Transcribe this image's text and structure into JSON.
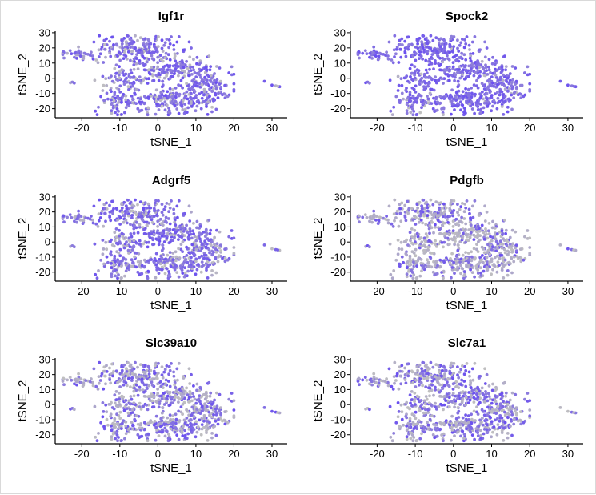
{
  "colors": {
    "low": "#c0c0c0",
    "high": "#6a4ff0",
    "axis": "#000000"
  },
  "chart_data": [
    {
      "type": "scatter",
      "title": "Igf1r",
      "xlabel": "tSNE_1",
      "ylabel": "tSNE_2",
      "xlim": [
        -27,
        34
      ],
      "ylim": [
        -26,
        31
      ],
      "xticks": [
        -20,
        -10,
        0,
        10,
        20,
        30
      ],
      "yticks": [
        -20,
        -10,
        0,
        10,
        20,
        30
      ],
      "grid": false,
      "legend": "none",
      "color_scale": "grey-to-purple",
      "high_fraction": 0.78,
      "seed": 11
    },
    {
      "type": "scatter",
      "title": "Spock2",
      "xlabel": "tSNE_1",
      "ylabel": "tSNE_2",
      "xlim": [
        -27,
        34
      ],
      "ylim": [
        -26,
        31
      ],
      "xticks": [
        -20,
        -10,
        0,
        10,
        20,
        30
      ],
      "yticks": [
        -20,
        -10,
        0,
        10,
        20,
        30
      ],
      "grid": false,
      "legend": "none",
      "color_scale": "grey-to-purple",
      "high_fraction": 0.92,
      "seed": 23
    },
    {
      "type": "scatter",
      "title": "Adgrf5",
      "xlabel": "tSNE_1",
      "ylabel": "tSNE_2",
      "xlim": [
        -27,
        34
      ],
      "ylim": [
        -26,
        31
      ],
      "xticks": [
        -20,
        -10,
        0,
        10,
        20,
        30
      ],
      "yticks": [
        -20,
        -10,
        0,
        10,
        20,
        30
      ],
      "grid": false,
      "legend": "none",
      "color_scale": "grey-to-purple",
      "high_fraction": 0.72,
      "seed": 37
    },
    {
      "type": "scatter",
      "title": "Pdgfb",
      "xlabel": "tSNE_1",
      "ylabel": "tSNE_2",
      "xlim": [
        -27,
        34
      ],
      "ylim": [
        -26,
        31
      ],
      "xticks": [
        -20,
        -10,
        0,
        10,
        20,
        30
      ],
      "yticks": [
        -20,
        -10,
        0,
        10,
        20,
        30
      ],
      "grid": false,
      "legend": "none",
      "color_scale": "grey-to-purple",
      "high_fraction": 0.35,
      "seed": 41
    },
    {
      "type": "scatter",
      "title": "Slc39a10",
      "xlabel": "tSNE_1",
      "ylabel": "tSNE_2",
      "xlim": [
        -27,
        34
      ],
      "ylim": [
        -26,
        31
      ],
      "xticks": [
        -20,
        -10,
        0,
        10,
        20,
        30
      ],
      "yticks": [
        -20,
        -10,
        0,
        10,
        20,
        30
      ],
      "grid": false,
      "legend": "none",
      "color_scale": "grey-to-purple",
      "high_fraction": 0.5,
      "seed": 53
    },
    {
      "type": "scatter",
      "title": "Slc7a1",
      "xlabel": "tSNE_1",
      "ylabel": "tSNE_2",
      "xlim": [
        -27,
        34
      ],
      "ylim": [
        -26,
        31
      ],
      "xticks": [
        -20,
        -10,
        0,
        10,
        20,
        30
      ],
      "yticks": [
        -20,
        -10,
        0,
        10,
        20,
        30
      ],
      "grid": false,
      "legend": "none",
      "color_scale": "grey-to-purple",
      "high_fraction": 0.55,
      "seed": 67
    }
  ]
}
